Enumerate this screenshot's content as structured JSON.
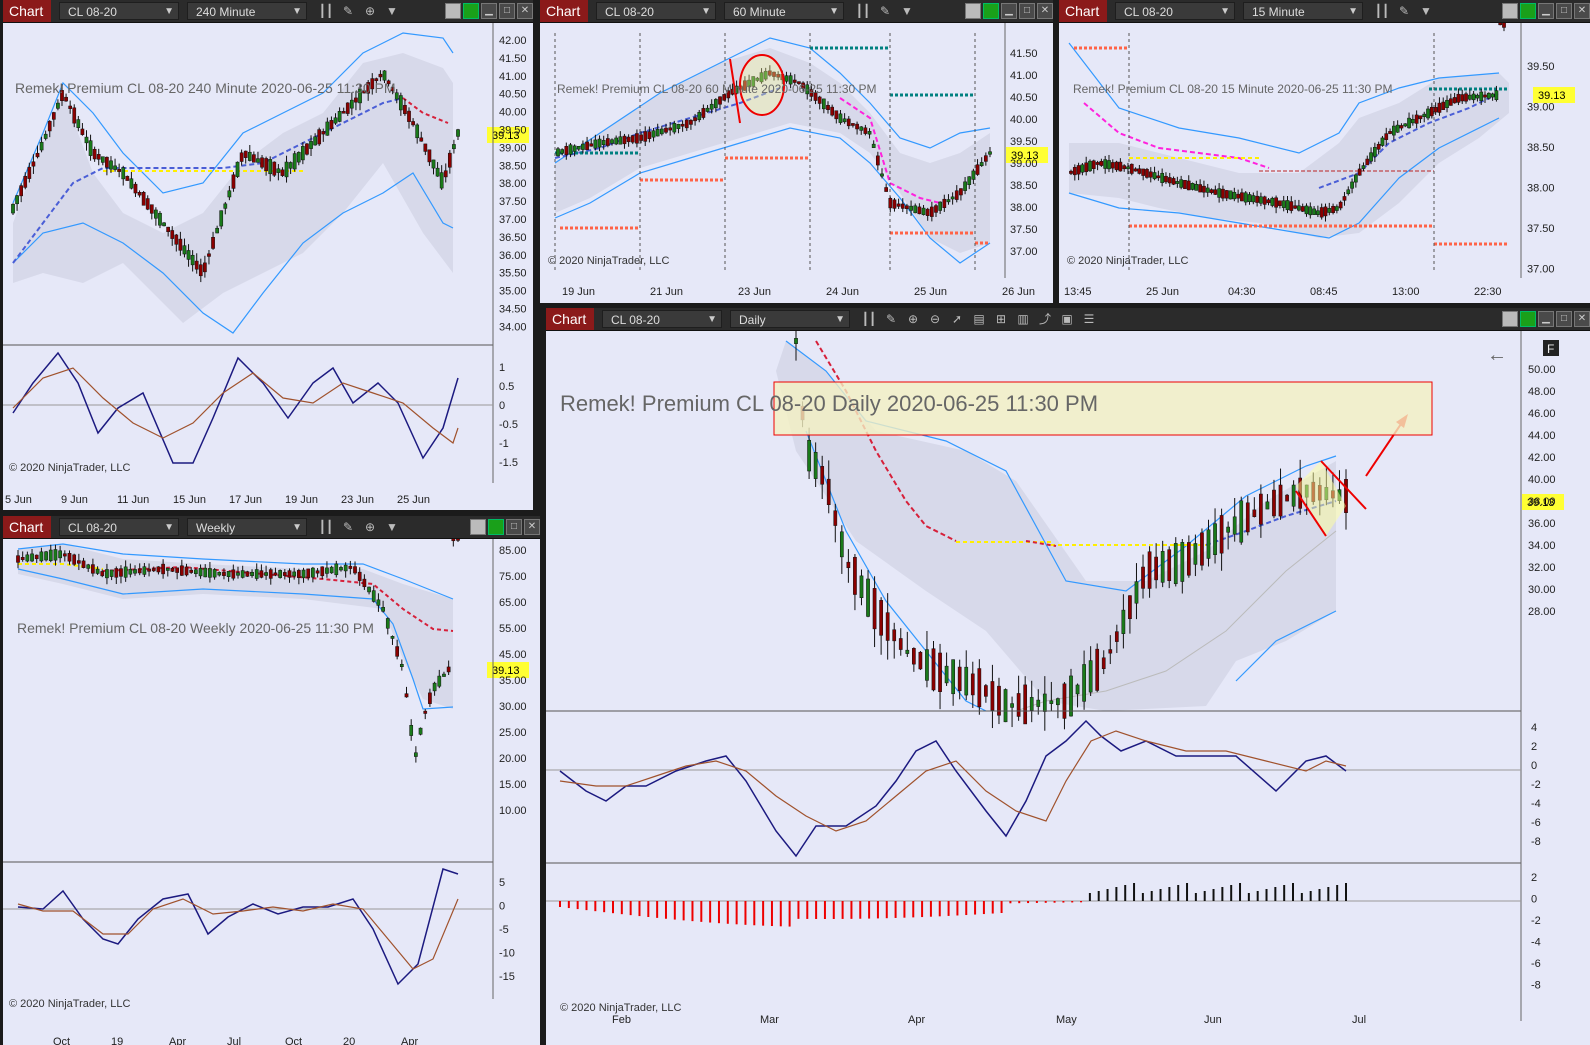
{
  "panels": {
    "p240": {
      "chart_label": "Chart",
      "instrument": "CL 08-20",
      "timeframe": "240 Minute",
      "title": "Remek!  Premium  CL 08-20  240 Minute  2020-06-25 11:30 PM",
      "price_tag": "39.13",
      "copyright": "© 2020 NinjaTrader, LLC",
      "price_axis": [
        "42.00",
        "41.50",
        "41.00",
        "40.50",
        "40.00",
        "39.50",
        "39.00",
        "38.50",
        "38.00",
        "37.50",
        "37.00",
        "36.50",
        "36.00",
        "35.50",
        "35.00",
        "34.50",
        "34.00"
      ],
      "osc_axis": [
        "1",
        "0.5",
        "0",
        "-0.5",
        "-1",
        "-1.5"
      ],
      "time_axis": [
        "5 Jun",
        "9 Jun",
        "11 Jun",
        "15 Jun",
        "17 Jun",
        "19 Jun",
        "23 Jun",
        "25 Jun"
      ]
    },
    "p60": {
      "chart_label": "Chart",
      "instrument": "CL 08-20",
      "timeframe": "60 Minute",
      "title": "Remek!  Premium  CL 08-20  60 Minute  2020-06-25 11:30 PM",
      "price_tag": "39.13",
      "copyright": "© 2020 NinjaTrader, LLC",
      "price_axis": [
        "41.50",
        "41.00",
        "40.50",
        "40.00",
        "39.50",
        "39.00",
        "38.50",
        "38.00",
        "37.50",
        "37.00"
      ],
      "time_axis": [
        "19 Jun",
        "21 Jun",
        "23 Jun",
        "24 Jun",
        "25 Jun",
        "26 Jun"
      ]
    },
    "p15": {
      "chart_label": "Chart",
      "instrument": "CL 08-20",
      "timeframe": "15 Minute",
      "title": "Remek!  Premium  CL 08-20  15 Minute  2020-06-25 11:30 PM",
      "price_tag": "39.13",
      "copyright": "© 2020 NinjaTrader, LLC",
      "price_axis": [
        "39.50",
        "39.00",
        "38.50",
        "38.00",
        "37.50",
        "37.00"
      ],
      "time_axis": [
        "13:45",
        "25 Jun",
        "04:30",
        "08:45",
        "13:00",
        "22:30"
      ]
    },
    "pweekly": {
      "chart_label": "Chart",
      "instrument": "CL 08-20",
      "timeframe": "Weekly",
      "title": "Remek!  Premium  CL 08-20  Weekly  2020-06-25 11:30 PM",
      "price_tag": "39.13",
      "copyright": "© 2020 NinjaTrader, LLC",
      "price_axis": [
        "85.00",
        "75.00",
        "65.00",
        "55.00",
        "45.00",
        "35.00",
        "30.00",
        "25.00",
        "20.00",
        "15.00",
        "10.00"
      ],
      "osc_axis": [
        "5",
        "0",
        "-5",
        "-10",
        "-15"
      ],
      "time_axis": [
        "Oct",
        "19",
        "Apr",
        "Jul",
        "Oct",
        "20",
        "Apr"
      ]
    },
    "pdaily": {
      "chart_label": "Chart",
      "instrument": "CL 08-20",
      "timeframe": "Daily",
      "title": "Remek!  Premium  CL 08-20  Daily  2020-06-25 11:30 PM",
      "price_tag": "39.13",
      "copyright": "© 2020 NinjaTrader, LLC",
      "corner_badge": "F",
      "price_axis": [
        "50.00",
        "48.00",
        "46.00",
        "44.00",
        "42.00",
        "40.00",
        "38.00",
        "36.00",
        "34.00",
        "32.00",
        "30.00",
        "28.00"
      ],
      "osc_axis": [
        "4",
        "2",
        "0",
        "-2",
        "-4",
        "-6",
        "-8"
      ],
      "hist_axis": [
        "2",
        "0",
        "-2",
        "-4",
        "-6",
        "-8"
      ],
      "time_axis": [
        "Feb",
        "Mar",
        "Apr",
        "May",
        "Jun",
        "Jul"
      ]
    }
  },
  "icons": [
    "bar-type-icon",
    "pencil-icon",
    "zoom-icon",
    "dropdown-icon",
    "minimize-icon",
    "maximize-icon",
    "close-icon"
  ],
  "colors": {
    "chart_label_bg": "#8b1a1a",
    "price_tag": "#ffff33",
    "band": "#3399ff",
    "bear": "#8b0000",
    "bull": "#1a7a1a"
  }
}
